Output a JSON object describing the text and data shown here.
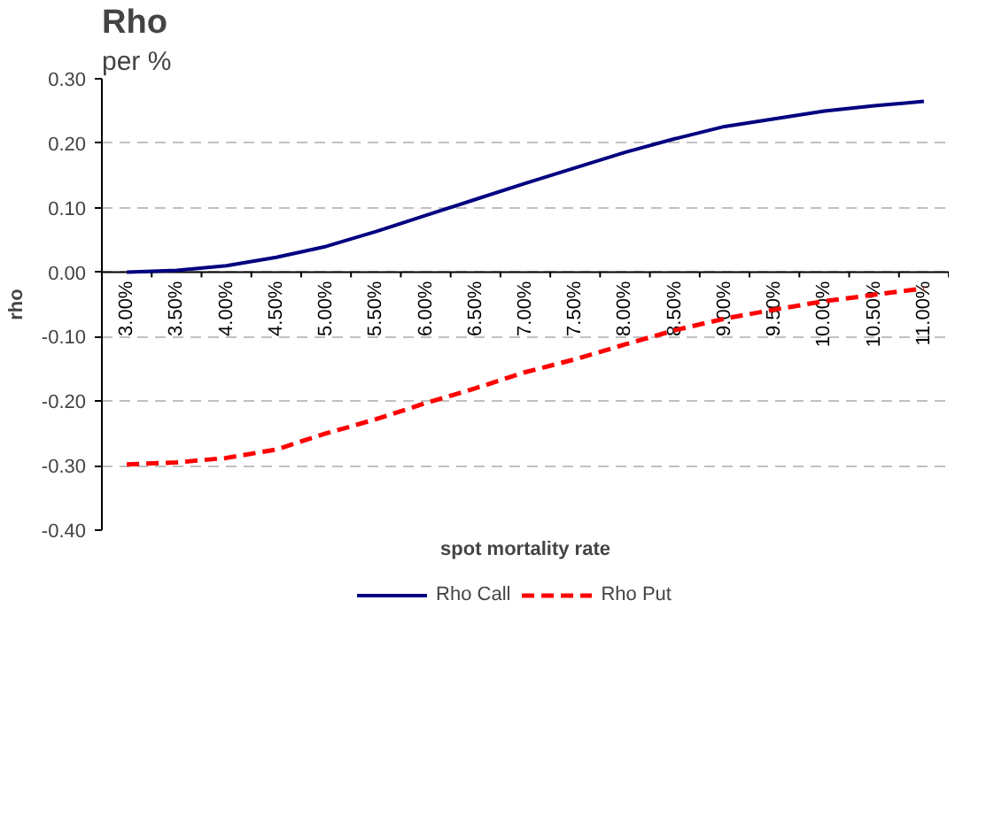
{
  "chart_data": {
    "type": "line",
    "title": "Rho",
    "subtitle": "per %",
    "xlabel": "spot mortality rate",
    "ylabel": "rho",
    "categories": [
      "3.00%",
      "3.50%",
      "4.00%",
      "4.50%",
      "5.00%",
      "5.50%",
      "6.00%",
      "6.50%",
      "7.00%",
      "7.50%",
      "8.00%",
      "8.50%",
      "9.00%",
      "9.50%",
      "10.00%",
      "10.50%",
      "11.00%"
    ],
    "series": [
      {
        "name": "Rho Call",
        "color": "#000080",
        "line_style": "solid",
        "values": [
          0.0,
          0.003,
          0.01,
          0.023,
          0.04,
          0.063,
          0.088,
          0.113,
          0.138,
          0.162,
          0.186,
          0.207,
          0.226,
          0.238,
          0.25,
          0.258,
          0.265
        ]
      },
      {
        "name": "Rho Put",
        "color": "#ff0000",
        "line_style": "dashed",
        "values": [
          -0.298,
          -0.295,
          -0.288,
          -0.275,
          -0.25,
          -0.228,
          -0.203,
          -0.18,
          -0.155,
          -0.135,
          -0.112,
          -0.09,
          -0.072,
          -0.058,
          -0.045,
          -0.035,
          -0.025
        ]
      }
    ],
    "ylim": [
      -0.4,
      0.3
    ],
    "yticks": [
      {
        "value": -0.4,
        "label": "-0.40"
      },
      {
        "value": -0.3,
        "label": "-0.30"
      },
      {
        "value": -0.2,
        "label": "-0.20"
      },
      {
        "value": -0.1,
        "label": "-0.10"
      },
      {
        "value": 0,
        "label": "0.00"
      },
      {
        "value": 0.1,
        "label": "0.10"
      },
      {
        "value": 0.2,
        "label": "0.20"
      },
      {
        "value": 0.3,
        "label": "0.30"
      }
    ],
    "grid": "y",
    "legend": "bottom",
    "marker": "none"
  }
}
